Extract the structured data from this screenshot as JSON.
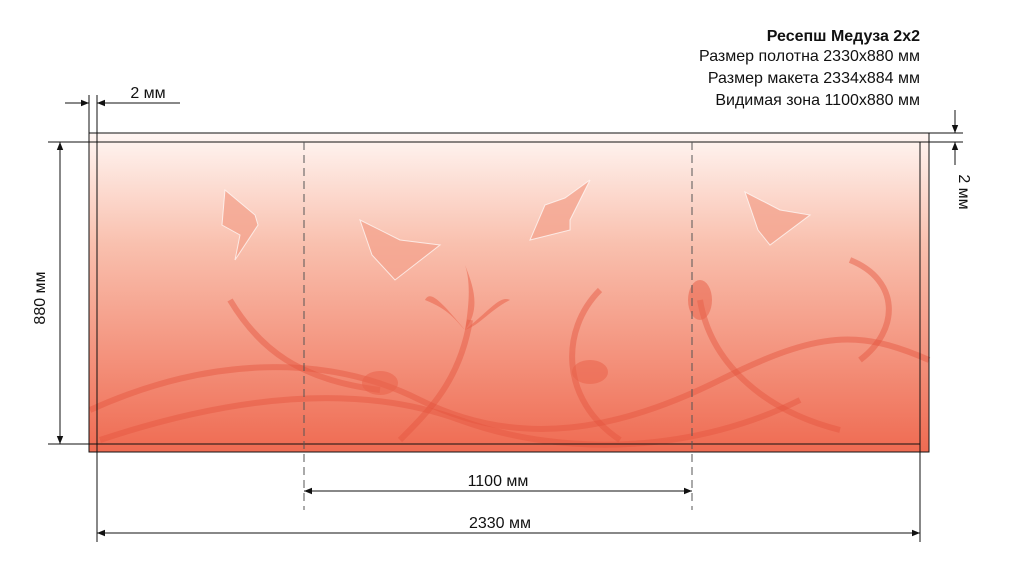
{
  "header": {
    "title": "Ресепш Медуза 2х2",
    "lines": [
      "Размер полотна 2330x880 мм",
      "Размер макета 2334x884 мм",
      "Видимая зона 1100x880 мм"
    ]
  },
  "dimensions": {
    "bleed_left": "2 мм",
    "bleed_right": "2 мм",
    "height": "880 мм",
    "visible_width": "1100 мм",
    "total_width": "2330 мм"
  }
}
